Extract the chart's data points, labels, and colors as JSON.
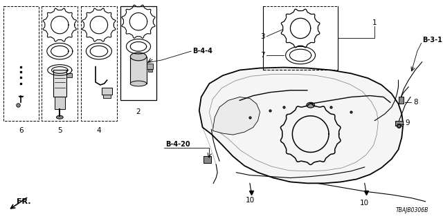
{
  "bg_color": "#ffffff",
  "part_number": "TBAJB0306B",
  "figsize": [
    6.4,
    3.2
  ],
  "dpi": 100
}
